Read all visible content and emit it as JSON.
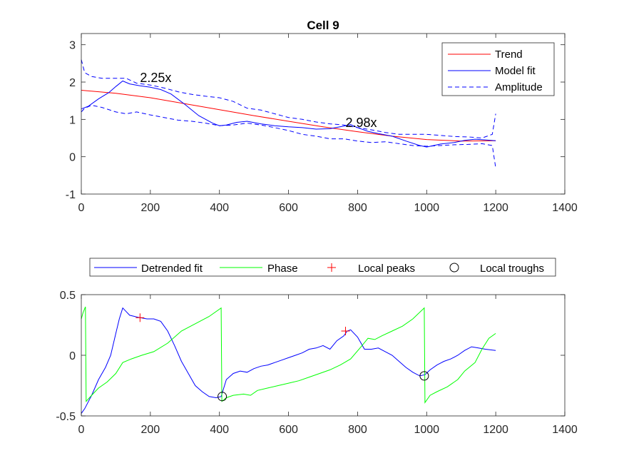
{
  "chart_data": [
    {
      "type": "line",
      "title": "Cell 9",
      "xlabel": "",
      "ylabel": "",
      "xlim": [
        0,
        1400
      ],
      "ylim": [
        -1,
        3.3
      ],
      "xticks": [
        0,
        200,
        400,
        600,
        800,
        1000,
        1200,
        1400
      ],
      "yticks": [
        -1,
        0,
        1,
        2,
        3
      ],
      "legend_position": "top-right",
      "grid": false,
      "series": [
        {
          "name": "Trend",
          "color": "#ff0000",
          "style": "solid",
          "x": [
            0,
            100,
            200,
            300,
            400,
            500,
            600,
            700,
            800,
            900,
            1000,
            1100,
            1200
          ],
          "y": [
            1.78,
            1.7,
            1.58,
            1.42,
            1.26,
            1.1,
            0.95,
            0.8,
            0.67,
            0.55,
            0.46,
            0.42,
            0.43
          ]
        },
        {
          "name": "Model fit",
          "color": "#0000ff",
          "style": "solid",
          "x": [
            0,
            20,
            50,
            80,
            100,
            120,
            140,
            170,
            200,
            230,
            260,
            300,
            340,
            380,
            400,
            420,
            450,
            480,
            520,
            560,
            600,
            640,
            680,
            720,
            760,
            780,
            800,
            830,
            860,
            900,
            940,
            980,
            1000,
            1040,
            1080,
            1110,
            1140,
            1170,
            1200
          ],
          "y": [
            1.28,
            1.35,
            1.55,
            1.72,
            1.88,
            2.03,
            1.95,
            1.9,
            1.86,
            1.8,
            1.68,
            1.4,
            1.1,
            0.9,
            0.83,
            0.85,
            0.92,
            0.95,
            0.88,
            0.83,
            0.8,
            0.78,
            0.74,
            0.75,
            0.82,
            0.86,
            0.78,
            0.68,
            0.62,
            0.55,
            0.42,
            0.3,
            0.26,
            0.34,
            0.38,
            0.44,
            0.47,
            0.45,
            0.43
          ]
        },
        {
          "name": "Amplitude",
          "color": "#0000ff",
          "style": "dashed",
          "x": [
            0,
            10,
            30,
            60,
            100,
            130,
            160,
            200,
            240,
            280,
            320,
            360,
            400,
            440,
            480,
            520,
            560,
            600,
            640,
            680,
            720,
            760,
            800,
            840,
            880,
            920,
            960,
            1000,
            1040,
            1080,
            1120,
            1160,
            1190,
            1200
          ],
          "y": [
            2.6,
            2.25,
            2.15,
            2.1,
            2.1,
            2.1,
            1.97,
            1.92,
            1.84,
            1.74,
            1.67,
            1.62,
            1.58,
            1.48,
            1.3,
            1.25,
            1.15,
            1.05,
            1.0,
            0.93,
            0.88,
            0.85,
            0.78,
            0.72,
            0.65,
            0.6,
            0.6,
            0.6,
            0.57,
            0.54,
            0.53,
            0.5,
            0.6,
            1.15
          ]
        },
        {
          "name": "",
          "color": "#0000ff",
          "style": "dashed",
          "x": [
            0,
            10,
            30,
            60,
            100,
            130,
            160,
            200,
            240,
            280,
            320,
            360,
            400,
            440,
            480,
            520,
            560,
            600,
            640,
            680,
            720,
            760,
            800,
            840,
            880,
            920,
            960,
            1000,
            1040,
            1080,
            1120,
            1160,
            1190,
            1200
          ],
          "y": [
            1.2,
            1.3,
            1.38,
            1.32,
            1.2,
            1.15,
            1.2,
            1.12,
            1.05,
            0.98,
            0.95,
            0.9,
            0.83,
            0.85,
            0.9,
            0.85,
            0.78,
            0.7,
            0.6,
            0.55,
            0.48,
            0.48,
            0.42,
            0.38,
            0.4,
            0.35,
            0.3,
            0.28,
            0.3,
            0.32,
            0.33,
            0.35,
            0.3,
            -0.3
          ]
        }
      ],
      "annotations": [
        {
          "text": "2.25x",
          "x": 170,
          "y": 2.0
        },
        {
          "text": "2.98x",
          "x": 765,
          "y": 0.8
        }
      ]
    },
    {
      "type": "line",
      "title": "",
      "xlabel": "",
      "ylabel": "",
      "xlim": [
        0,
        1400
      ],
      "ylim": [
        -0.5,
        0.5
      ],
      "xticks": [
        0,
        200,
        400,
        600,
        800,
        1000,
        1200,
        1400
      ],
      "yticks": [
        -0.5,
        0,
        0.5
      ],
      "legend_position": "top-outside",
      "grid": false,
      "series": [
        {
          "name": "Detrended fit",
          "color": "#0000ff",
          "style": "solid",
          "x": [
            0,
            10,
            30,
            50,
            70,
            85,
            100,
            110,
            120,
            130,
            140,
            155,
            170,
            190,
            210,
            230,
            250,
            270,
            290,
            310,
            330,
            350,
            370,
            390,
            405,
            420,
            440,
            460,
            480,
            500,
            520,
            540,
            560,
            580,
            600,
            620,
            640,
            660,
            680,
            700,
            720,
            740,
            760,
            770,
            780,
            800,
            820,
            840,
            860,
            880,
            900,
            920,
            940,
            960,
            980,
            995,
            1010,
            1030,
            1050,
            1070,
            1090,
            1110,
            1130,
            1150,
            1170,
            1200
          ],
          "y": [
            -0.48,
            -0.44,
            -0.33,
            -0.2,
            -0.1,
            0.0,
            0.18,
            0.3,
            0.39,
            0.36,
            0.33,
            0.32,
            0.31,
            0.3,
            0.3,
            0.28,
            0.2,
            0.08,
            -0.05,
            -0.15,
            -0.25,
            -0.3,
            -0.34,
            -0.35,
            -0.34,
            -0.2,
            -0.15,
            -0.13,
            -0.14,
            -0.11,
            -0.09,
            -0.08,
            -0.06,
            -0.04,
            -0.02,
            0.0,
            0.02,
            0.05,
            0.06,
            0.08,
            0.05,
            0.12,
            0.16,
            0.2,
            0.21,
            0.15,
            0.05,
            0.05,
            0.06,
            0.03,
            0.0,
            -0.05,
            -0.1,
            -0.14,
            -0.17,
            -0.16,
            -0.12,
            -0.08,
            -0.05,
            -0.03,
            0.0,
            0.04,
            0.07,
            0.06,
            0.05,
            0.04
          ]
        },
        {
          "name": "Phase",
          "color": "#00ff00",
          "style": "solid",
          "x": [
            0,
            5,
            12,
            14,
            30,
            50,
            75,
            100,
            120,
            145,
            175,
            210,
            250,
            290,
            330,
            370,
            405,
            407,
            420,
            440,
            470,
            490,
            510,
            540,
            570,
            600,
            630,
            660,
            690,
            720,
            750,
            780,
            810,
            830,
            850,
            870,
            900,
            930,
            960,
            993,
            995,
            1010,
            1030,
            1060,
            1090,
            1110,
            1140,
            1160,
            1180,
            1200
          ],
          "y": [
            0.3,
            0.35,
            0.4,
            -0.38,
            -0.33,
            -0.27,
            -0.22,
            -0.15,
            -0.06,
            -0.03,
            0.0,
            0.03,
            0.1,
            0.2,
            0.26,
            0.32,
            0.39,
            -0.38,
            -0.35,
            -0.33,
            -0.32,
            -0.33,
            -0.29,
            -0.27,
            -0.25,
            -0.23,
            -0.21,
            -0.18,
            -0.15,
            -0.12,
            -0.08,
            -0.03,
            0.07,
            0.14,
            0.13,
            0.16,
            0.2,
            0.24,
            0.3,
            0.39,
            -0.39,
            -0.33,
            -0.3,
            -0.26,
            -0.2,
            -0.13,
            -0.06,
            0.05,
            0.14,
            0.18
          ]
        },
        {
          "name": "Local peaks",
          "color": "#ff0000",
          "style": "marker-plus",
          "x": [
            170,
            765
          ],
          "y": [
            0.31,
            0.2
          ]
        },
        {
          "name": "Local troughs",
          "color": "#000000",
          "style": "marker-circle",
          "x": [
            408,
            993
          ],
          "y": [
            -0.34,
            -0.17
          ]
        }
      ]
    }
  ]
}
